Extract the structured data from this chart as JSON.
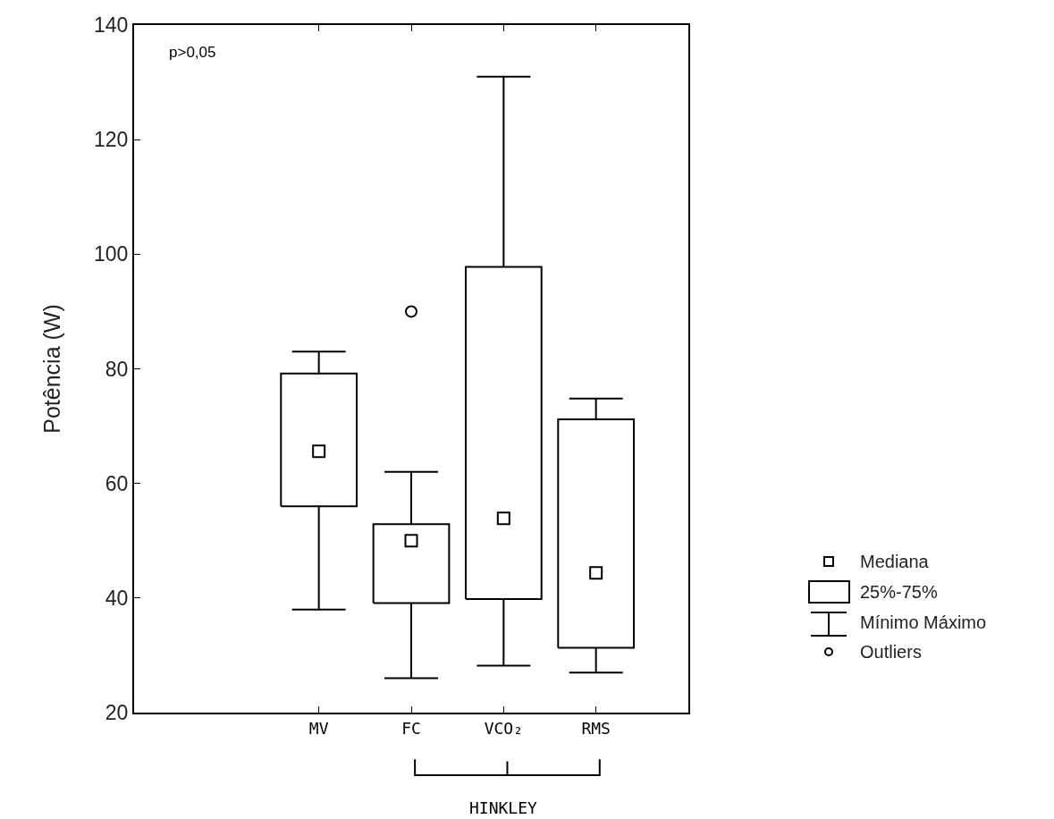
{
  "chart_data": {
    "type": "box",
    "ylabel": "Potência (W)",
    "categories": [
      "MV",
      "FC",
      "VCO₂",
      "RMS"
    ],
    "boxes": [
      {
        "low": 38,
        "q1": 56,
        "median": 65.6,
        "q3": 79.2,
        "high": 83
      },
      {
        "low": 26,
        "q1": 39.1,
        "median": 50,
        "q3": 52.9,
        "high": 62,
        "outliers": [
          90
        ]
      },
      {
        "low": 28.2,
        "q1": 39.8,
        "median": 53.9,
        "q3": 97.8,
        "high": 131
      },
      {
        "low": 27,
        "q1": 31.3,
        "median": 44.4,
        "q3": 71.2,
        "high": 74.8
      }
    ],
    "annotations": [
      "p>0,05",
      "HINKLEY",
      "Mediana",
      "25%-75%",
      "Mínimo Máximo",
      "Outliers"
    ],
    "ylim": [
      20,
      140
    ],
    "yticks": [
      20,
      40,
      60,
      80,
      100,
      120,
      140
    ]
  }
}
